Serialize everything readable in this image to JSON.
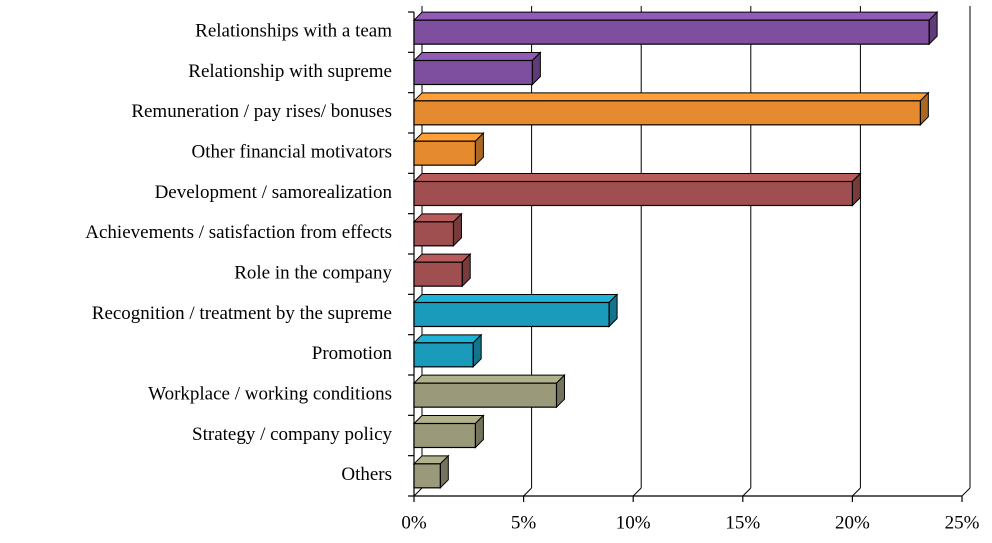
{
  "chart_data": {
    "type": "bar",
    "orientation": "horizontal",
    "categories": [
      "Relationships with a team",
      "Relationship with supreme",
      "Remuneration / pay rises/ bonuses",
      "Other financial motivators",
      "Development / samorealization",
      "Achievements / satisfaction from effects",
      "Role in the company",
      "Recognition / treatment by the supreme",
      "Promotion",
      "Workplace / working conditions",
      "Strategy / company policy",
      "Others"
    ],
    "values": [
      23.5,
      5.4,
      23.1,
      2.8,
      20.0,
      1.8,
      2.2,
      8.9,
      2.7,
      6.5,
      2.8,
      1.2
    ],
    "colors": [
      "#7f4f9f",
      "#7f4f9f",
      "#e58a2e",
      "#e58a2e",
      "#a04f50",
      "#a04f50",
      "#a04f50",
      "#1a9bbb",
      "#1a9bbb",
      "#9a9a7a",
      "#9a9a7a",
      "#9a9a7a"
    ],
    "xlim": [
      0,
      25
    ],
    "xticks": [
      {
        "value": 0,
        "label": "0%"
      },
      {
        "value": 5,
        "label": "5%"
      },
      {
        "value": 10,
        "label": "10%"
      },
      {
        "value": 15,
        "label": "15%"
      },
      {
        "value": 20,
        "label": "20%"
      },
      {
        "value": 25,
        "label": "25%"
      }
    ],
    "grid": true
  }
}
